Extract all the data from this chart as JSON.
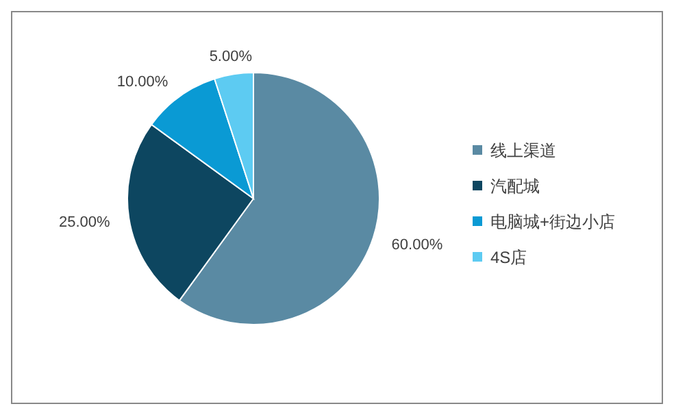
{
  "chart_data": {
    "type": "pie",
    "categories": [
      "线上渠道",
      "汽配城",
      "电脑城+街边小店",
      "4S店"
    ],
    "values": [
      60,
      25,
      10,
      5
    ],
    "colors": [
      "#5a8aa3",
      "#0d4660",
      "#0a9ad4",
      "#5dcbf2"
    ],
    "value_labels": [
      "60.00%",
      "25.00%",
      "10.00%",
      "5.00%"
    ],
    "legend": "right"
  }
}
